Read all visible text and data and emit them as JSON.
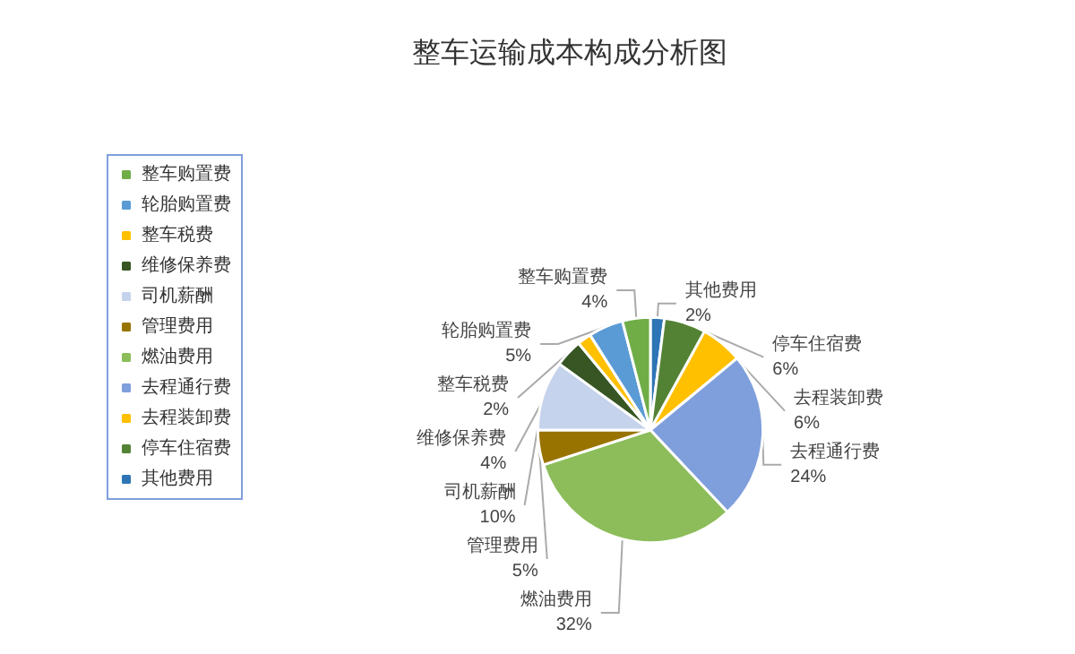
{
  "chart_data": {
    "type": "pie",
    "title": "整车运输成本构成分析图",
    "categories": [
      "其他费用",
      "停车住宿费",
      "去程装卸费",
      "去程通行费",
      "燃油费用",
      "管理费用",
      "司机薪酬",
      "维修保养费",
      "整车税费",
      "轮胎购置费",
      "整车购置费"
    ],
    "values": [
      2,
      6,
      6,
      24,
      32,
      5,
      10,
      4,
      2,
      5,
      4
    ],
    "value_labels": [
      "2%",
      "6%",
      "6%",
      "24%",
      "32%",
      "5%",
      "10%",
      "4%",
      "2%",
      "5%",
      "4%"
    ],
    "colors": [
      "#2e75b6",
      "#548235",
      "#ffc000",
      "#7f9fdc",
      "#8cbd5a",
      "#997300",
      "#c5d3ec",
      "#375623",
      "#ffc000",
      "#5b9bd5",
      "#70ad47"
    ],
    "legend": "left"
  }
}
